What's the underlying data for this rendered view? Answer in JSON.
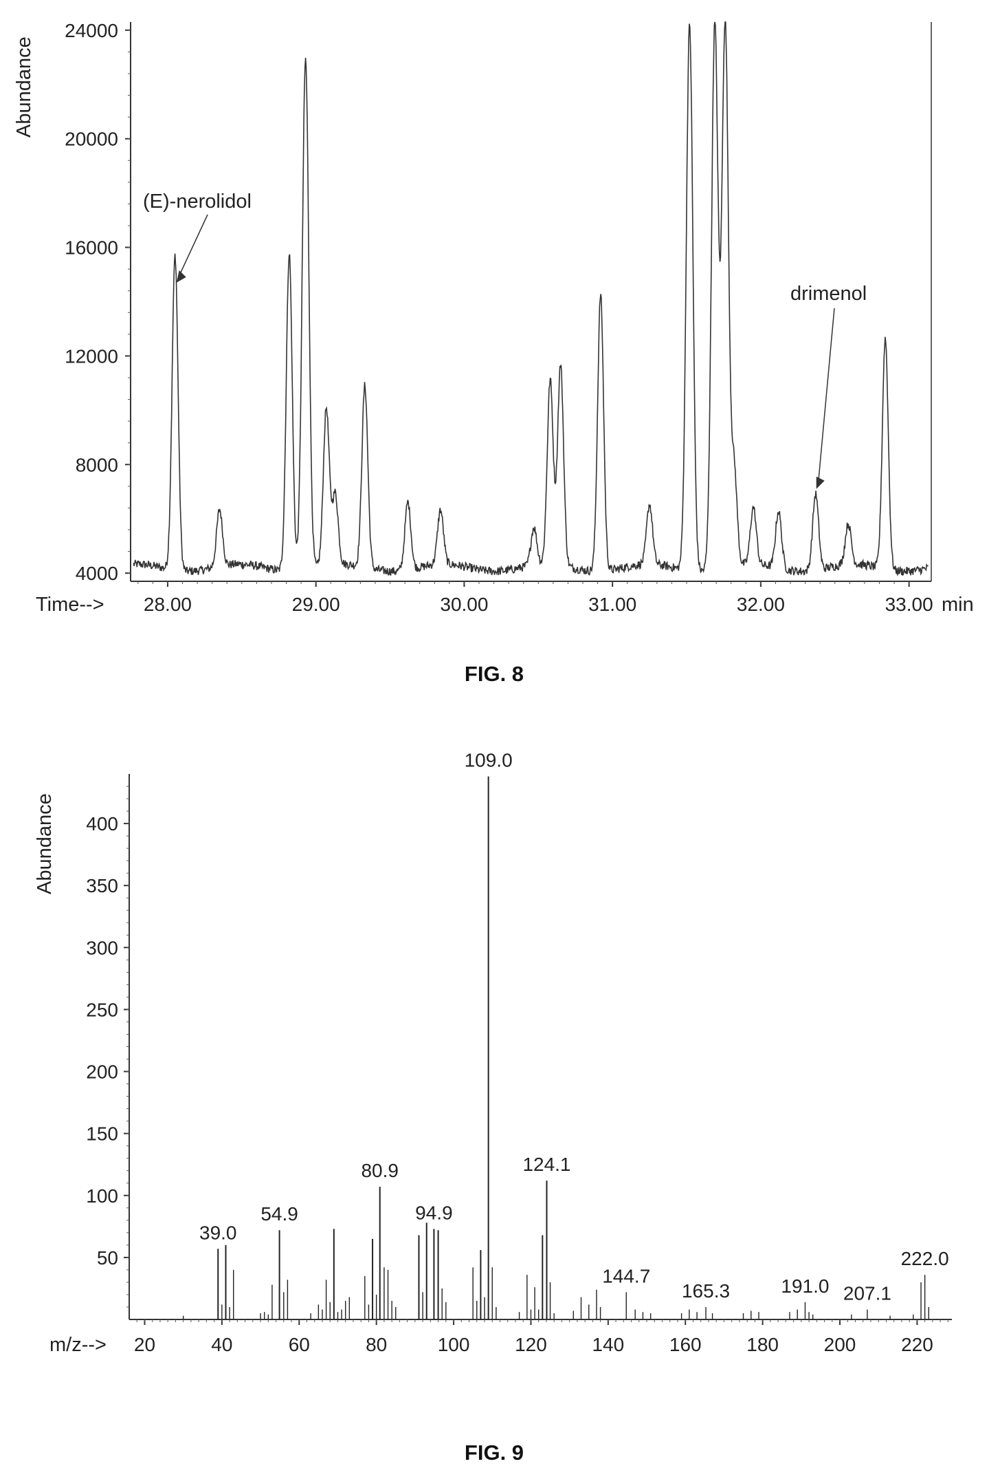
{
  "chart_data": [
    {
      "type": "line",
      "figure_label": "FIG. 8",
      "xlabel": "Time-->",
      "x_unit": "min",
      "ylabel": "Abundance",
      "xlim": [
        27.75,
        33.15
      ],
      "ylim": [
        3700,
        24300
      ],
      "x_ticks": [
        28.0,
        29.0,
        30.0,
        31.0,
        32.0,
        33.0
      ],
      "x_tick_labels": [
        "28.00",
        "29.00",
        "30.00",
        "31.00",
        "32.00",
        "33.00"
      ],
      "y_ticks": [
        4000,
        8000,
        12000,
        16000,
        20000,
        24000
      ],
      "y_tick_labels": [
        "4000",
        "8000",
        "12000",
        "16000",
        "20000",
        "24000"
      ],
      "baseline": 4200,
      "peaks": [
        {
          "x": 28.05,
          "y": 15800
        },
        {
          "x": 28.35,
          "y": 6300
        },
        {
          "x": 28.82,
          "y": 15900
        },
        {
          "x": 28.93,
          "y": 23000
        },
        {
          "x": 29.07,
          "y": 10000
        },
        {
          "x": 29.13,
          "y": 6800
        },
        {
          "x": 29.33,
          "y": 10900
        },
        {
          "x": 29.62,
          "y": 6700
        },
        {
          "x": 29.84,
          "y": 6200
        },
        {
          "x": 30.47,
          "y": 5600
        },
        {
          "x": 30.58,
          "y": 11000
        },
        {
          "x": 30.65,
          "y": 11600
        },
        {
          "x": 30.92,
          "y": 14400
        },
        {
          "x": 31.25,
          "y": 6400
        },
        {
          "x": 31.52,
          "y": 24300
        },
        {
          "x": 31.69,
          "y": 24300
        },
        {
          "x": 31.76,
          "y": 24300
        },
        {
          "x": 31.82,
          "y": 7800
        },
        {
          "x": 31.95,
          "y": 6300
        },
        {
          "x": 32.12,
          "y": 6300
        },
        {
          "x": 32.37,
          "y": 7000
        },
        {
          "x": 32.59,
          "y": 5700
        },
        {
          "x": 32.84,
          "y": 12700
        }
      ],
      "annotations": [
        {
          "text": "(E)-nerolidol",
          "x": 28.05,
          "y": 14700
        },
        {
          "text": "drimenol",
          "x": 32.37,
          "y": 7000
        }
      ]
    },
    {
      "type": "bar",
      "figure_label": "FIG. 9",
      "xlabel": "m/z-->",
      "ylabel": "Abundance",
      "xlim": [
        16,
        229
      ],
      "ylim": [
        0,
        440
      ],
      "x_ticks": [
        20,
        40,
        60,
        80,
        100,
        120,
        140,
        160,
        180,
        200,
        220
      ],
      "x_tick_labels": [
        "20",
        "40",
        "60",
        "80",
        "100",
        "120",
        "140",
        "160",
        "180",
        "200",
        "220"
      ],
      "y_ticks": [
        50,
        100,
        150,
        200,
        250,
        300,
        350,
        400
      ],
      "y_tick_labels": [
        "50",
        "100",
        "150",
        "200",
        "250",
        "300",
        "350",
        "400"
      ],
      "points": [
        {
          "x": 30,
          "y": 3
        },
        {
          "x": 39.0,
          "y": 57
        },
        {
          "x": 40,
          "y": 12
        },
        {
          "x": 41,
          "y": 60
        },
        {
          "x": 42,
          "y": 10
        },
        {
          "x": 43,
          "y": 40
        },
        {
          "x": 50,
          "y": 5
        },
        {
          "x": 51,
          "y": 6
        },
        {
          "x": 52,
          "y": 4
        },
        {
          "x": 53,
          "y": 28
        },
        {
          "x": 54.9,
          "y": 72
        },
        {
          "x": 56,
          "y": 22
        },
        {
          "x": 57,
          "y": 32
        },
        {
          "x": 63,
          "y": 5
        },
        {
          "x": 65,
          "y": 12
        },
        {
          "x": 66,
          "y": 8
        },
        {
          "x": 67,
          "y": 32
        },
        {
          "x": 68,
          "y": 14
        },
        {
          "x": 69,
          "y": 73
        },
        {
          "x": 70,
          "y": 6
        },
        {
          "x": 71,
          "y": 8
        },
        {
          "x": 72,
          "y": 15
        },
        {
          "x": 73,
          "y": 18
        },
        {
          "x": 77,
          "y": 35
        },
        {
          "x": 78,
          "y": 12
        },
        {
          "x": 79,
          "y": 65
        },
        {
          "x": 80,
          "y": 20
        },
        {
          "x": 80.9,
          "y": 107
        },
        {
          "x": 82,
          "y": 42
        },
        {
          "x": 83,
          "y": 40
        },
        {
          "x": 84,
          "y": 15
        },
        {
          "x": 85,
          "y": 10
        },
        {
          "x": 91,
          "y": 68
        },
        {
          "x": 92,
          "y": 22
        },
        {
          "x": 93,
          "y": 78
        },
        {
          "x": 94.9,
          "y": 73
        },
        {
          "x": 96,
          "y": 72
        },
        {
          "x": 97,
          "y": 25
        },
        {
          "x": 98,
          "y": 14
        },
        {
          "x": 105,
          "y": 42
        },
        {
          "x": 106,
          "y": 15
        },
        {
          "x": 107,
          "y": 56
        },
        {
          "x": 108,
          "y": 18
        },
        {
          "x": 109.0,
          "y": 438
        },
        {
          "x": 110,
          "y": 42
        },
        {
          "x": 111,
          "y": 10
        },
        {
          "x": 117,
          "y": 6
        },
        {
          "x": 119,
          "y": 36
        },
        {
          "x": 120,
          "y": 8
        },
        {
          "x": 121,
          "y": 26
        },
        {
          "x": 122,
          "y": 8
        },
        {
          "x": 123,
          "y": 68
        },
        {
          "x": 124.1,
          "y": 112
        },
        {
          "x": 125,
          "y": 30
        },
        {
          "x": 126,
          "y": 5
        },
        {
          "x": 131,
          "y": 7
        },
        {
          "x": 133,
          "y": 18
        },
        {
          "x": 135,
          "y": 12
        },
        {
          "x": 137,
          "y": 24
        },
        {
          "x": 138,
          "y": 10
        },
        {
          "x": 144.7,
          "y": 22
        },
        {
          "x": 147,
          "y": 8
        },
        {
          "x": 149,
          "y": 6
        },
        {
          "x": 151,
          "y": 5
        },
        {
          "x": 159,
          "y": 5
        },
        {
          "x": 161,
          "y": 8
        },
        {
          "x": 163,
          "y": 6
        },
        {
          "x": 165.3,
          "y": 10
        },
        {
          "x": 167,
          "y": 5
        },
        {
          "x": 175,
          "y": 5
        },
        {
          "x": 177,
          "y": 7
        },
        {
          "x": 179,
          "y": 6
        },
        {
          "x": 187,
          "y": 6
        },
        {
          "x": 189,
          "y": 8
        },
        {
          "x": 191.0,
          "y": 14
        },
        {
          "x": 192,
          "y": 6
        },
        {
          "x": 193,
          "y": 4
        },
        {
          "x": 203,
          "y": 4
        },
        {
          "x": 207.1,
          "y": 8
        },
        {
          "x": 213,
          "y": 3
        },
        {
          "x": 219,
          "y": 4
        },
        {
          "x": 221,
          "y": 30
        },
        {
          "x": 222.0,
          "y": 36
        },
        {
          "x": 223,
          "y": 10
        }
      ],
      "peak_labels": [
        "39.0",
        "54.9",
        "80.9",
        "94.9",
        "109.0",
        "124.1",
        "144.7",
        "165.3",
        "191.0",
        "207.1",
        "222.0"
      ]
    }
  ]
}
